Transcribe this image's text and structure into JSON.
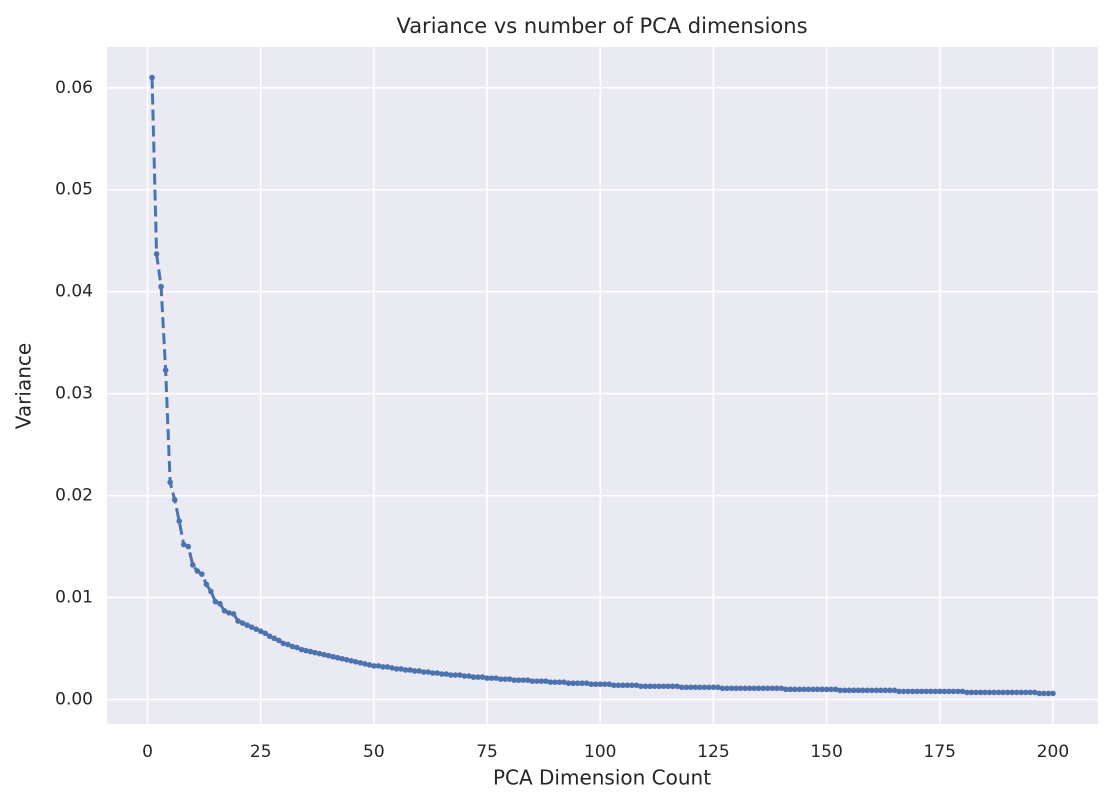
{
  "chart_data": {
    "type": "line",
    "title": "Variance vs number of PCA dimensions",
    "xlabel": "PCA Dimension Count",
    "ylabel": "Variance",
    "color": "#4c72b0",
    "grid": true,
    "xlim": [
      -8.95,
      209.95
    ],
    "ylim": [
      -0.0024,
      0.064
    ],
    "xticks": [
      0,
      25,
      50,
      75,
      100,
      125,
      150,
      175,
      200
    ],
    "yticks": [
      {
        "value": 0,
        "label": "0.00"
      },
      {
        "value": 0.01,
        "label": "0.01"
      },
      {
        "value": 0.02,
        "label": "0.02"
      },
      {
        "value": 0.03,
        "label": "0.03"
      },
      {
        "value": 0.04,
        "label": "0.04"
      },
      {
        "value": 0.05,
        "label": "0.05"
      },
      {
        "value": 0.06,
        "label": "0.06"
      }
    ],
    "x": [
      1,
      2,
      3,
      4,
      5,
      6,
      7,
      8,
      9,
      10,
      11,
      12,
      13,
      14,
      15,
      16,
      17,
      18,
      19,
      20,
      21,
      22,
      23,
      24,
      25,
      26,
      27,
      28,
      29,
      30,
      31,
      32,
      33,
      34,
      35,
      36,
      37,
      38,
      39,
      40,
      41,
      42,
      43,
      44,
      45,
      46,
      47,
      48,
      49,
      50,
      51,
      52,
      53,
      54,
      55,
      56,
      57,
      58,
      59,
      60,
      61,
      62,
      63,
      64,
      65,
      66,
      67,
      68,
      69,
      70,
      71,
      72,
      73,
      74,
      75,
      76,
      77,
      78,
      79,
      80,
      81,
      82,
      83,
      84,
      85,
      86,
      87,
      88,
      89,
      90,
      91,
      92,
      93,
      94,
      95,
      96,
      97,
      98,
      99,
      100,
      101,
      102,
      103,
      104,
      105,
      106,
      107,
      108,
      109,
      110,
      111,
      112,
      113,
      114,
      115,
      116,
      117,
      118,
      119,
      120,
      121,
      122,
      123,
      124,
      125,
      126,
      127,
      128,
      129,
      130,
      131,
      132,
      133,
      134,
      135,
      136,
      137,
      138,
      139,
      140,
      141,
      142,
      143,
      144,
      145,
      146,
      147,
      148,
      149,
      150,
      151,
      152,
      153,
      154,
      155,
      156,
      157,
      158,
      159,
      160,
      161,
      162,
      163,
      164,
      165,
      166,
      167,
      168,
      169,
      170,
      171,
      172,
      173,
      174,
      175,
      176,
      177,
      178,
      179,
      180,
      181,
      182,
      183,
      184,
      185,
      186,
      187,
      188,
      189,
      190,
      191,
      192,
      193,
      194,
      195,
      196,
      197,
      198,
      199,
      200
    ],
    "values": [
      0.061,
      0.0437,
      0.0405,
      0.0323,
      0.0213,
      0.0196,
      0.0175,
      0.0152,
      0.015,
      0.0132,
      0.0126,
      0.0123,
      0.0113,
      0.0106,
      0.0096,
      0.0094,
      0.0087,
      0.0085,
      0.0084,
      0.0077,
      0.0075,
      0.0073,
      0.0071,
      0.0069,
      0.0067,
      0.0065,
      0.0062,
      0.006,
      0.0058,
      0.0055,
      0.0054,
      0.0052,
      0.0051,
      0.0049,
      0.0048,
      0.0047,
      0.0046,
      0.0045,
      0.0044,
      0.0043,
      0.0042,
      0.0041,
      0.004,
      0.0039,
      0.0038,
      0.0037,
      0.0036,
      0.0035,
      0.0034,
      0.0033,
      0.0033,
      0.0032,
      0.0032,
      0.0031,
      0.003,
      0.003,
      0.0029,
      0.0029,
      0.0028,
      0.0028,
      0.0027,
      0.0027,
      0.0026,
      0.0026,
      0.0025,
      0.0025,
      0.0024,
      0.0024,
      0.0024,
      0.0023,
      0.0023,
      0.0022,
      0.0022,
      0.0022,
      0.0021,
      0.0021,
      0.0021,
      0.002,
      0.002,
      0.002,
      0.0019,
      0.0019,
      0.0019,
      0.0019,
      0.0018,
      0.0018,
      0.0018,
      0.0018,
      0.0017,
      0.0017,
      0.0017,
      0.0017,
      0.0016,
      0.0016,
      0.0016,
      0.0016,
      0.0016,
      0.0015,
      0.0015,
      0.0015,
      0.0015,
      0.0015,
      0.0014,
      0.0014,
      0.0014,
      0.0014,
      0.0014,
      0.0014,
      0.0013,
      0.0013,
      0.0013,
      0.0013,
      0.0013,
      0.0013,
      0.0013,
      0.0013,
      0.0013,
      0.0012,
      0.0012,
      0.0012,
      0.0012,
      0.0012,
      0.0012,
      0.0012,
      0.0012,
      0.0012,
      0.0011,
      0.0011,
      0.0011,
      0.0011,
      0.0011,
      0.0011,
      0.0011,
      0.0011,
      0.0011,
      0.0011,
      0.0011,
      0.0011,
      0.0011,
      0.0011,
      0.001,
      0.001,
      0.001,
      0.001,
      0.001,
      0.001,
      0.001,
      0.001,
      0.001,
      0.001,
      0.001,
      0.001,
      0.0009,
      0.0009,
      0.0009,
      0.0009,
      0.0009,
      0.0009,
      0.0009,
      0.0009,
      0.0009,
      0.0009,
      0.0009,
      0.0009,
      0.0009,
      0.0008,
      0.0008,
      0.0008,
      0.0008,
      0.0008,
      0.0008,
      0.0008,
      0.0008,
      0.0008,
      0.0008,
      0.0008,
      0.0008,
      0.0008,
      0.0008,
      0.0008,
      0.0007,
      0.0007,
      0.0007,
      0.0007,
      0.0007,
      0.0007,
      0.0007,
      0.0007,
      0.0007,
      0.0007,
      0.0007,
      0.0007,
      0.0007,
      0.0007,
      0.0007,
      0.0007,
      0.0006,
      0.0006,
      0.0006,
      0.0006
    ]
  }
}
